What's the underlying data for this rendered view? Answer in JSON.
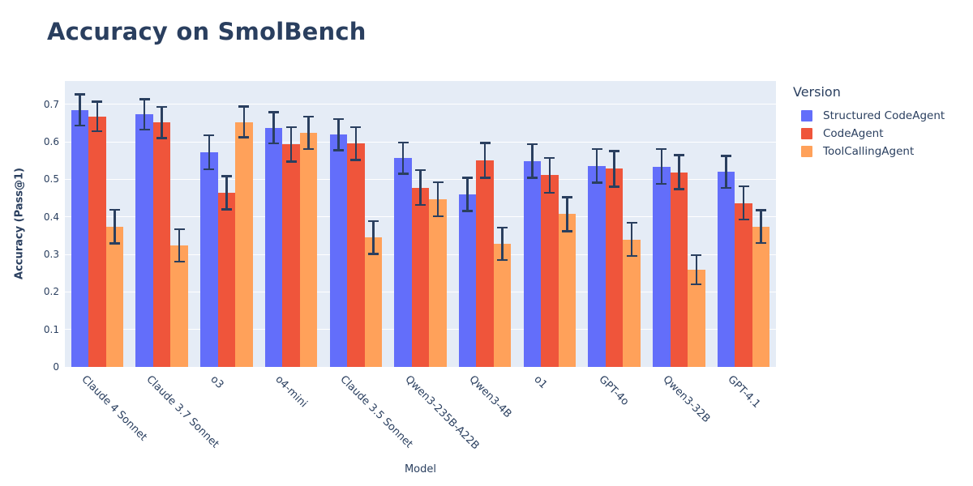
{
  "page_title": "Accuracy on SmolBench",
  "chart_data": {
    "type": "bar",
    "title": "Accuracy on SmolBench",
    "xlabel": "Model",
    "ylabel": "Accuracy (Pass@1)",
    "ylim": [
      0,
      0.762
    ],
    "yticks": [
      "0",
      "0.1",
      "0.2",
      "0.3",
      "0.4",
      "0.5",
      "0.6",
      "0.7"
    ],
    "ytick_values": [
      0,
      0.1,
      0.2,
      0.3,
      0.4,
      0.5,
      0.6,
      0.7
    ],
    "grid": true,
    "plot_bgcolor": "#E5ECF6",
    "gridline_color": "#ffffff",
    "error_bar_color": "#2a3f5f",
    "text_color": "#2a3f5f",
    "legend_title": "Version",
    "legend_position": "right",
    "categories": [
      "Claude 4 Sonnet",
      "Claude 3.7 Sonnet",
      "o3",
      "o4-mini",
      "Claude 3.5 Sonnet",
      "Qwen3-235B-A22B",
      "Qwen3-4B",
      "o1",
      "GPT-4o",
      "Qwen3-32B",
      "GPT-4.1"
    ],
    "series": [
      {
        "name": "Structured CodeAgent",
        "color": "#636EFA",
        "values": [
          0.685,
          0.673,
          0.572,
          0.637,
          0.619,
          0.556,
          0.46,
          0.549,
          0.536,
          0.534,
          0.52
        ],
        "errors": [
          0.042,
          0.041,
          0.046,
          0.042,
          0.042,
          0.042,
          0.045,
          0.045,
          0.045,
          0.047,
          0.043
        ]
      },
      {
        "name": "CodeAgent",
        "color": "#EF553B",
        "values": [
          0.668,
          0.651,
          0.464,
          0.593,
          0.595,
          0.478,
          0.55,
          0.511,
          0.528,
          0.519,
          0.437
        ],
        "errors": [
          0.04,
          0.042,
          0.045,
          0.046,
          0.044,
          0.047,
          0.047,
          0.047,
          0.048,
          0.046,
          0.045
        ]
      },
      {
        "name": "ToolCallingAgent",
        "color": "#FFA15A",
        "values": [
          0.374,
          0.324,
          0.653,
          0.624,
          0.345,
          0.447,
          0.328,
          0.407,
          0.34,
          0.259,
          0.374
        ],
        "errors": [
          0.045,
          0.044,
          0.042,
          0.044,
          0.044,
          0.046,
          0.044,
          0.046,
          0.045,
          0.039,
          0.044
        ]
      }
    ]
  }
}
